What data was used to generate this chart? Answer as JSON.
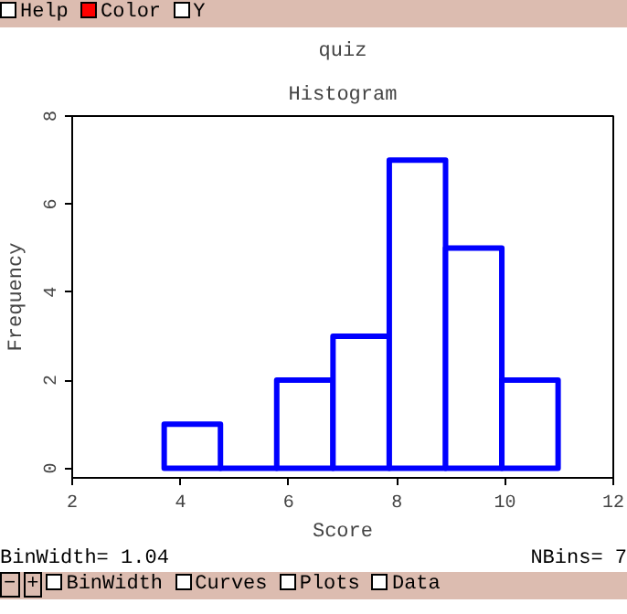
{
  "chart_data": {
    "type": "histogram",
    "title": "quiz",
    "subtitle": "Histogram",
    "xlabel": "Score",
    "ylabel": "Frequency",
    "bins": [
      3.7,
      4.74,
      5.78,
      6.82,
      7.86,
      8.9,
      9.94,
      10.98
    ],
    "values": [
      1,
      0,
      2,
      3,
      7,
      5,
      2
    ],
    "color": "#0000ff",
    "xlim": [
      2,
      12
    ],
    "xticks": [
      2,
      4,
      6,
      8,
      10,
      12
    ],
    "ylim": [
      -0.22,
      8
    ],
    "yticks": [
      0,
      2,
      4,
      6,
      8
    ],
    "grid": false,
    "annotations": [
      "BinWidth= 1.04",
      "NBins= 7",
      "Help",
      "Color",
      "Y",
      "BinWidth",
      "Curves",
      "Plots",
      "Data",
      "−",
      "+"
    ]
  }
}
